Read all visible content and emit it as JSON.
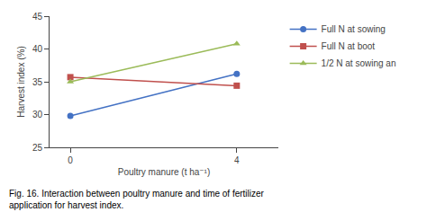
{
  "chart_data": {
    "type": "line",
    "x": [
      0,
      4
    ],
    "series": [
      {
        "name": "Full N at sowing",
        "values": [
          29.8,
          36.2
        ],
        "color": "#4472C4",
        "marker": "circle",
        "line_style": "solid"
      },
      {
        "name": "Full N at boot",
        "values": [
          35.7,
          34.4
        ],
        "color": "#C0504D",
        "marker": "square",
        "line_style": "solid"
      },
      {
        "name": "1/2 N at sowing an",
        "values": [
          35.0,
          40.8
        ],
        "color": "#9BBB59",
        "marker": "triangle-up",
        "line_style": "solid"
      }
    ],
    "x_label": "Poultry manure (t ha⁻¹)",
    "y_label": "Harvest index (%)",
    "xlim": [
      -0.5,
      5.0
    ],
    "xticks": [
      0,
      4
    ],
    "ylim": [
      25,
      45
    ],
    "yticks": [
      25,
      30,
      35,
      40,
      45
    ],
    "grid": false,
    "legend": "right",
    "annotations": [
      "Fig. 16. Interaction between poultry manure and time of fertilizer\napplication for harvest index."
    ]
  }
}
